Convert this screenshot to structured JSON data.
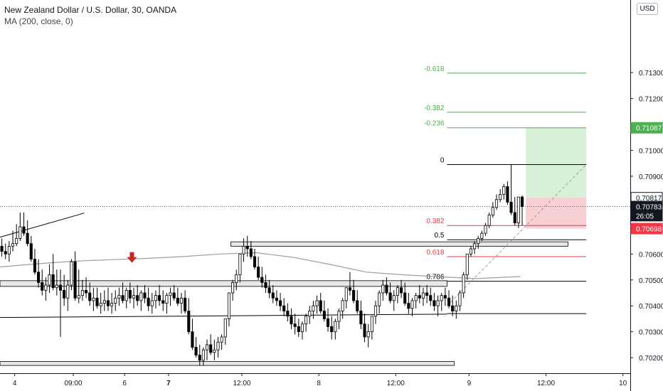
{
  "header": {
    "symbol_line": "New Zealand Dollar / U.S. Dollar, 30, OANDA",
    "indicator_line": "MA (200, close, 0)"
  },
  "currency_button": "USD",
  "colors": {
    "up": "#ffffff",
    "down": "#000000",
    "candle_border": "#000000",
    "ma": "#9e9e9e",
    "fib_green": "#4caf50",
    "fib_red": "#f23645",
    "fib_neutral": "#000000",
    "zone_fill": "#e8e8e8",
    "profit_fill": "#d8f0d8",
    "loss_fill": "#f8cfd3",
    "arrow": "#c62828"
  },
  "chart_data": {
    "type": "candlestick",
    "title": "New Zealand Dollar / U.S. Dollar, 30, OANDA",
    "y_axis": {
      "range": [
        0.7014,
        0.7158
      ],
      "ticks": [
        "0.70200",
        "0.70300",
        "0.70400",
        "0.70500",
        "0.70600",
        "0.70700",
        "0.70800",
        "0.70900",
        "0.71000",
        "0.71100",
        "0.71200",
        "0.71300"
      ]
    },
    "x_axis": {
      "range": [
        0,
        172
      ],
      "ticks": [
        {
          "x": 4,
          "label": "4",
          "bold": false
        },
        {
          "x": 20,
          "label": "09:00",
          "bold": false
        },
        {
          "x": 34,
          "label": "6",
          "bold": false
        },
        {
          "x": 46,
          "label": "7",
          "bold": true
        },
        {
          "x": 66,
          "label": "12:00",
          "bold": false
        },
        {
          "x": 87,
          "label": "8",
          "bold": false
        },
        {
          "x": 108,
          "label": "12:00",
          "bold": false
        },
        {
          "x": 128,
          "label": "9",
          "bold": false
        },
        {
          "x": 149,
          "label": "12:00",
          "bold": false
        },
        {
          "x": 170,
          "label": "10",
          "bold": false
        }
      ]
    },
    "price_tags": [
      {
        "label": "0.71087",
        "value": 0.71087,
        "bg": "#4caf50",
        "fg": "#ffffff"
      },
      {
        "label": "0.70817",
        "value": 0.70817,
        "bg": "#ffffff",
        "fg": "#131722",
        "border": "#131722"
      },
      {
        "label": "0.70783",
        "value": 0.70783,
        "bg": "#131722",
        "fg": "#ffffff"
      },
      {
        "label": "26:05",
        "value": 0.70748,
        "bg": "#131722",
        "fg": "#ffffff"
      },
      {
        "label": "0.70698",
        "value": 0.70698,
        "bg": "#f23645",
        "fg": "#ffffff"
      }
    ],
    "current_price": 0.70783,
    "fibonacci": {
      "x_start": 122,
      "x_end": 160,
      "levels": [
        {
          "label": "-0.618",
          "value": 0.71298,
          "color": "green"
        },
        {
          "label": "-0.382",
          "value": 0.71147,
          "color": "green"
        },
        {
          "label": "-0.236",
          "value": 0.71087,
          "color": "green"
        },
        {
          "label": "0",
          "value": 0.70945,
          "color": "neutral"
        },
        {
          "label": "0.382",
          "value": 0.7071,
          "color": "red"
        },
        {
          "label": "0.5",
          "value": 0.70655,
          "color": "neutral"
        },
        {
          "label": "0.618",
          "value": 0.7059,
          "color": "red"
        },
        {
          "label": "0.786",
          "value": 0.70495,
          "color": "neutral"
        }
      ]
    },
    "extra_level": {
      "value": 0.7037,
      "x_start": 122,
      "x_end": 160
    },
    "position": {
      "x_start": 143.5,
      "x_end": 160,
      "target": 0.71087,
      "entry": 0.70817,
      "stop": 0.70698
    },
    "zones": [
      {
        "x_start": 63,
        "x_end": 155,
        "top": 0.70647,
        "bottom": 0.7063
      },
      {
        "x_start": 0,
        "x_end": 122,
        "top": 0.70497,
        "bottom": 0.70475
      },
      {
        "x_start": 0,
        "x_end": 124,
        "top": 0.70185,
        "bottom": 0.7017
      }
    ],
    "lines": [
      {
        "x1": 0,
        "y1": 0.70665,
        "x2": 23,
        "y2": 0.70758
      },
      {
        "x1": 0,
        "y1": 0.70355,
        "x2": 122,
        "y2": 0.70368
      }
    ],
    "dashed_line": {
      "x1": 122,
      "y1": 0.704,
      "x2": 160,
      "y2": 0.70945
    },
    "arrow_marker": {
      "x": 36,
      "value": 0.7058
    },
    "ma": {
      "x": [
        0,
        10,
        20,
        30,
        40,
        50,
        60,
        70,
        80,
        90,
        100,
        110,
        120,
        130,
        142
      ],
      "y": [
        0.7055,
        0.70562,
        0.70572,
        0.70578,
        0.70583,
        0.7059,
        0.706,
        0.70605,
        0.70587,
        0.7056,
        0.7053,
        0.7052,
        0.70512,
        0.70505,
        0.70513
      ]
    },
    "candles": {
      "o": [
        0.7063,
        0.7061,
        0.706,
        0.7063,
        0.7064,
        0.7066,
        0.70705,
        0.7068,
        0.7064,
        0.7058,
        0.7053,
        0.7049,
        0.7046,
        0.7048,
        0.7052,
        0.7047,
        0.7048,
        0.7046,
        0.7043,
        0.7048,
        0.7057,
        0.7043,
        0.7044,
        0.7046,
        0.7045,
        0.7042,
        0.7043,
        0.704,
        0.7041,
        0.7042,
        0.704,
        0.7041,
        0.7043,
        0.7044,
        0.7042,
        0.7046,
        0.7043,
        0.7044,
        0.7042,
        0.7045,
        0.7043,
        0.704,
        0.7042,
        0.7044,
        0.7042,
        0.7041,
        0.7044,
        0.7045,
        0.7043,
        0.7041,
        0.7043,
        0.7038,
        0.703,
        0.7024,
        0.7021,
        0.7019,
        0.7023,
        0.7025,
        0.7022,
        0.7023,
        0.7026,
        0.7028,
        0.7035,
        0.7045,
        0.7049,
        0.7052,
        0.706,
        0.7063,
        0.7062,
        0.7059,
        0.7055,
        0.7051,
        0.7049,
        0.7047,
        0.7045,
        0.7043,
        0.7042,
        0.704,
        0.7038,
        0.7036,
        0.7033,
        0.7032,
        0.703,
        0.7033,
        0.7036,
        0.7038,
        0.704,
        0.7042,
        0.7038,
        0.7035,
        0.7032,
        0.703,
        0.7034,
        0.7038,
        0.7042,
        0.7047,
        0.7046,
        0.7042,
        0.7038,
        0.7033,
        0.7028,
        0.703,
        0.7036,
        0.704,
        0.7045,
        0.7048,
        0.7045,
        0.7042,
        0.7044,
        0.7047,
        0.7045,
        0.7041,
        0.7039,
        0.7042,
        0.7044,
        0.7043,
        0.7045,
        0.7044,
        0.7042,
        0.704,
        0.7042,
        0.7044,
        0.7043,
        0.704,
        0.7038,
        0.704,
        0.7045,
        0.7052,
        0.706,
        0.7062,
        0.7064,
        0.7066,
        0.7068,
        0.7071,
        0.7075,
        0.7078,
        0.7081,
        0.7083,
        0.7086,
        0.708,
        0.7076,
        0.7072,
        0.7082
      ],
      "h": [
        0.7066,
        0.7064,
        0.7065,
        0.7069,
        0.70715,
        0.7076,
        0.7076,
        0.7073,
        0.7067,
        0.7062,
        0.7058,
        0.7054,
        0.7051,
        0.7056,
        0.706,
        0.7054,
        0.7054,
        0.7052,
        0.705,
        0.7058,
        0.7061,
        0.7054,
        0.705,
        0.7051,
        0.7049,
        0.7047,
        0.7047,
        0.7045,
        0.7046,
        0.7047,
        0.7045,
        0.7046,
        0.7047,
        0.7049,
        0.7047,
        0.7049,
        0.7047,
        0.7048,
        0.7046,
        0.7048,
        0.7047,
        0.7045,
        0.7046,
        0.7048,
        0.7046,
        0.7045,
        0.7047,
        0.7048,
        0.7047,
        0.7045,
        0.7046,
        0.7043,
        0.7035,
        0.7028,
        0.7025,
        0.7024,
        0.7027,
        0.7029,
        0.7027,
        0.7028,
        0.7029,
        0.7035,
        0.7045,
        0.705,
        0.7054,
        0.706,
        0.7066,
        0.7067,
        0.7065,
        0.7062,
        0.7059,
        0.7055,
        0.7052,
        0.705,
        0.7048,
        0.7046,
        0.7045,
        0.7043,
        0.7041,
        0.7039,
        0.7037,
        0.7035,
        0.7034,
        0.7037,
        0.704,
        0.7042,
        0.7044,
        0.7045,
        0.7042,
        0.7039,
        0.7036,
        0.7035,
        0.7039,
        0.7043,
        0.7047,
        0.7053,
        0.705,
        0.7046,
        0.7042,
        0.7037,
        0.7033,
        0.7036,
        0.7042,
        0.7046,
        0.705,
        0.7051,
        0.7049,
        0.7046,
        0.7048,
        0.705,
        0.7049,
        0.7045,
        0.7043,
        0.7045,
        0.7048,
        0.7047,
        0.7048,
        0.7047,
        0.7045,
        0.7044,
        0.7045,
        0.7047,
        0.7046,
        0.7044,
        0.7042,
        0.7046,
        0.7053,
        0.706,
        0.7063,
        0.7065,
        0.7067,
        0.7069,
        0.7072,
        0.7076,
        0.708,
        0.7083,
        0.7085,
        0.7087,
        0.7088,
        0.70945,
        0.7082,
        0.7078,
        0.70825
      ],
      "l": [
        0.7059,
        0.7058,
        0.7057,
        0.7061,
        0.7063,
        0.7065,
        0.7067,
        0.7063,
        0.7057,
        0.7052,
        0.7047,
        0.7044,
        0.7042,
        0.7045,
        0.7046,
        0.7044,
        0.7028,
        0.704,
        0.7038,
        0.7046,
        0.7042,
        0.7041,
        0.7042,
        0.7043,
        0.704,
        0.7038,
        0.7039,
        0.7037,
        0.7038,
        0.7038,
        0.7037,
        0.7038,
        0.704,
        0.7041,
        0.7039,
        0.7041,
        0.7039,
        0.704,
        0.7038,
        0.7041,
        0.7038,
        0.7037,
        0.7039,
        0.704,
        0.7038,
        0.7037,
        0.704,
        0.7042,
        0.704,
        0.7037,
        0.7037,
        0.7029,
        0.7023,
        0.702,
        0.7017,
        0.7017,
        0.7019,
        0.7021,
        0.7019,
        0.702,
        0.7023,
        0.7025,
        0.7032,
        0.7042,
        0.7046,
        0.7049,
        0.7057,
        0.7059,
        0.7058,
        0.7054,
        0.705,
        0.7047,
        0.7045,
        0.7043,
        0.7041,
        0.704,
        0.7038,
        0.7036,
        0.7034,
        0.7031,
        0.7029,
        0.7028,
        0.7027,
        0.703,
        0.7033,
        0.7035,
        0.7037,
        0.7037,
        0.7034,
        0.703,
        0.7027,
        0.7027,
        0.7031,
        0.7035,
        0.7039,
        0.7044,
        0.7041,
        0.7037,
        0.7031,
        0.7026,
        0.7024,
        0.7027,
        0.7033,
        0.7037,
        0.7042,
        0.7044,
        0.7041,
        0.7038,
        0.7041,
        0.7043,
        0.704,
        0.7037,
        0.7036,
        0.7039,
        0.7041,
        0.704,
        0.7041,
        0.704,
        0.7038,
        0.7036,
        0.7038,
        0.704,
        0.7039,
        0.7036,
        0.7035,
        0.7038,
        0.7043,
        0.705,
        0.7059,
        0.706,
        0.7062,
        0.7065,
        0.7067,
        0.707,
        0.7074,
        0.7077,
        0.708,
        0.7081,
        0.7079,
        0.7075,
        0.7071,
        0.707,
        0.7071
      ],
      "c": [
        0.7061,
        0.706,
        0.7063,
        0.7064,
        0.7066,
        0.70705,
        0.7068,
        0.7064,
        0.7058,
        0.7053,
        0.7049,
        0.7046,
        0.7048,
        0.7052,
        0.7047,
        0.7048,
        0.7046,
        0.7043,
        0.7048,
        0.7057,
        0.7043,
        0.7044,
        0.7046,
        0.7045,
        0.7042,
        0.7043,
        0.704,
        0.7041,
        0.7042,
        0.704,
        0.7041,
        0.7043,
        0.7044,
        0.7042,
        0.7046,
        0.7043,
        0.7044,
        0.7042,
        0.7045,
        0.7043,
        0.704,
        0.7042,
        0.7044,
        0.7042,
        0.7041,
        0.7044,
        0.7045,
        0.7043,
        0.7041,
        0.7043,
        0.7038,
        0.703,
        0.7024,
        0.7021,
        0.7019,
        0.7023,
        0.7025,
        0.7022,
        0.7023,
        0.7026,
        0.7028,
        0.7035,
        0.7045,
        0.7049,
        0.7052,
        0.706,
        0.7063,
        0.7062,
        0.7059,
        0.7055,
        0.7051,
        0.7049,
        0.7047,
        0.7045,
        0.7043,
        0.7042,
        0.704,
        0.7038,
        0.7036,
        0.7033,
        0.7032,
        0.703,
        0.7033,
        0.7036,
        0.7038,
        0.704,
        0.7042,
        0.7038,
        0.7035,
        0.7032,
        0.703,
        0.7034,
        0.7038,
        0.7042,
        0.7047,
        0.7046,
        0.7042,
        0.7038,
        0.7033,
        0.7028,
        0.703,
        0.7036,
        0.704,
        0.7045,
        0.7048,
        0.7045,
        0.7042,
        0.7044,
        0.7047,
        0.7045,
        0.7041,
        0.7039,
        0.7042,
        0.7044,
        0.7043,
        0.7045,
        0.7044,
        0.7042,
        0.704,
        0.7042,
        0.7044,
        0.7043,
        0.704,
        0.7038,
        0.704,
        0.7045,
        0.7052,
        0.706,
        0.7062,
        0.7064,
        0.7066,
        0.7068,
        0.7071,
        0.7075,
        0.7078,
        0.7081,
        0.7083,
        0.7086,
        0.708,
        0.7076,
        0.7072,
        0.7082,
        0.70783
      ]
    }
  }
}
